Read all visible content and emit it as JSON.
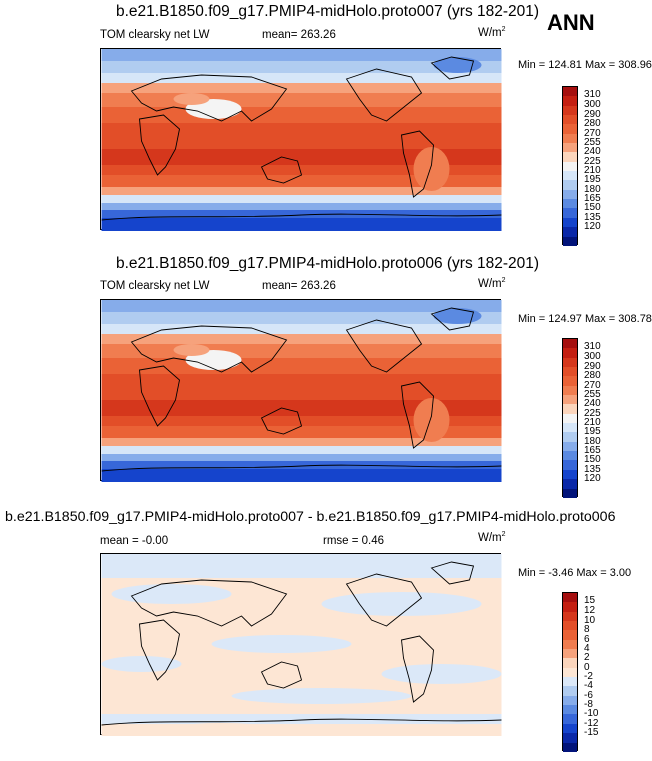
{
  "season": "ANN",
  "panels": [
    {
      "title": "b.e21.B1850.f09_g17.PMIP4-midHolo.proto007 (yrs 182-201)",
      "left_label": "TOM clearsky net LW",
      "mean_text": "mean= 263.26",
      "rmse_text": "",
      "units": "W/m",
      "units_sup": "2",
      "minmax": "Min = 124.81 Max = 308.96",
      "colorbar_ticks": [
        "310",
        "300",
        "290",
        "280",
        "270",
        "255",
        "240",
        "225",
        "210",
        "195",
        "180",
        "165",
        "150",
        "135",
        "120"
      ]
    },
    {
      "title": "b.e21.B1850.f09_g17.PMIP4-midHolo.proto006 (yrs 182-201)",
      "left_label": "TOM clearsky net LW",
      "mean_text": "mean= 263.26",
      "rmse_text": "",
      "units": "W/m",
      "units_sup": "2",
      "minmax": "Min = 124.97 Max = 308.78",
      "colorbar_ticks": [
        "310",
        "300",
        "290",
        "280",
        "270",
        "255",
        "240",
        "225",
        "210",
        "195",
        "180",
        "165",
        "150",
        "135",
        "120"
      ]
    },
    {
      "title": "b.e21.B1850.f09_g17.PMIP4-midHolo.proto007 - b.e21.B1850.f09_g17.PMIP4-midHolo.proto006",
      "left_label": "",
      "mean_text": "mean =  -0.00",
      "rmse_text": "rmse =   0.46",
      "units": "W/m",
      "units_sup": "2",
      "minmax": "Min =  -3.46 Max =  3.00",
      "colorbar_ticks": [
        "15",
        "12",
        "10",
        "8",
        "6",
        "4",
        "2",
        "0",
        "-2",
        "-4",
        "-6",
        "-8",
        "-10",
        "-12",
        "-15"
      ]
    }
  ],
  "colors": {
    "abs_scale": [
      "#a50f0f",
      "#c41f12",
      "#d5371c",
      "#e24e28",
      "#ea6236",
      "#f07d50",
      "#f6a27c",
      "#fbd5bc",
      "#f4f4f4",
      "#d6e6f8",
      "#b0ccf0",
      "#86acea",
      "#5b8ae1",
      "#3767d9",
      "#1544cc",
      "#0a28a8",
      "#02147a"
    ],
    "diff_scale": [
      "#a50f0f",
      "#c41f12",
      "#d5371c",
      "#e24e28",
      "#ea6236",
      "#f07d50",
      "#f6a27c",
      "#fbd5bc",
      "#fde6d4",
      "#dbe8f8",
      "#b0ccf0",
      "#86acea",
      "#5b8ae1",
      "#3767d9",
      "#1544cc",
      "#0a28a8",
      "#02147a"
    ],
    "diff_pos": "#fde6d4",
    "diff_neg": "#dbe8f8"
  }
}
